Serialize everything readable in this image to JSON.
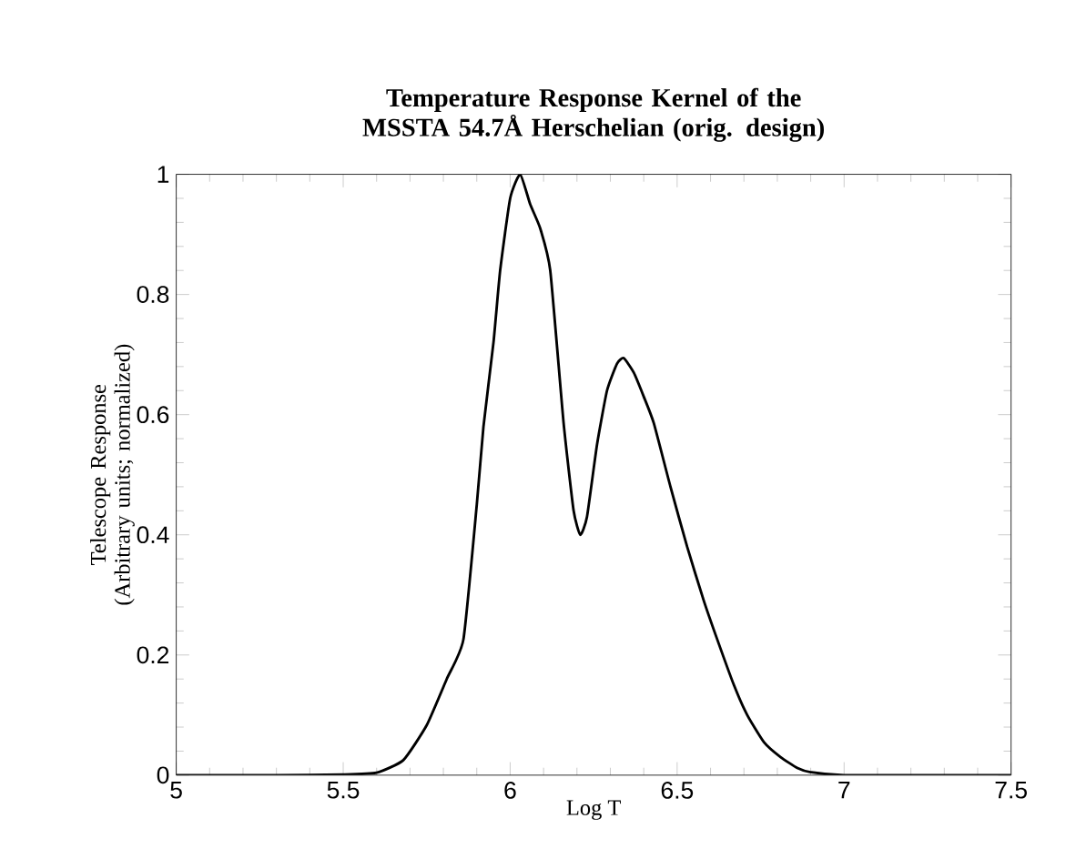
{
  "chart_data": {
    "type": "line",
    "title": "Temperature Response Kernel of the MSSTA 54.7Å Herschelian (orig. design)",
    "xlabel": "Log T",
    "ylabel": "Telescope Response (Arbitrary units; normalized)",
    "x": [
      5.0,
      5.3,
      5.5,
      5.6,
      5.68,
      5.75,
      5.81,
      5.86,
      5.9,
      5.92,
      5.95,
      5.97,
      6.0,
      6.03,
      6.06,
      6.09,
      6.12,
      6.16,
      6.19,
      6.21,
      6.23,
      6.26,
      6.29,
      6.32,
      6.34,
      6.37,
      6.4,
      6.43,
      6.48,
      6.53,
      6.58,
      6.62,
      6.67,
      6.71,
      6.76,
      6.81,
      6.86,
      6.9,
      7.0,
      7.5
    ],
    "series": [
      {
        "color": "#000000",
        "values": [
          0,
          0,
          0.001,
          0.004,
          0.025,
          0.083,
          0.16,
          0.226,
          0.45,
          0.58,
          0.72,
          0.84,
          0.96,
          1.0,
          0.95,
          0.91,
          0.84,
          0.586,
          0.44,
          0.4,
          0.43,
          0.55,
          0.64,
          0.685,
          0.694,
          0.67,
          0.63,
          0.586,
          0.48,
          0.38,
          0.29,
          0.226,
          0.15,
          0.1,
          0.055,
          0.03,
          0.012,
          0.005,
          0,
          0
        ]
      }
    ],
    "xlim": [
      5,
      7.5
    ],
    "ylim": [
      0,
      1
    ],
    "xticks": [
      5,
      5.5,
      6,
      6.5,
      7,
      7.5
    ],
    "yticks": [
      0,
      0.2,
      0.4,
      0.6,
      0.8,
      1
    ],
    "grid": false,
    "marker": "none",
    "line_style": "solid"
  }
}
